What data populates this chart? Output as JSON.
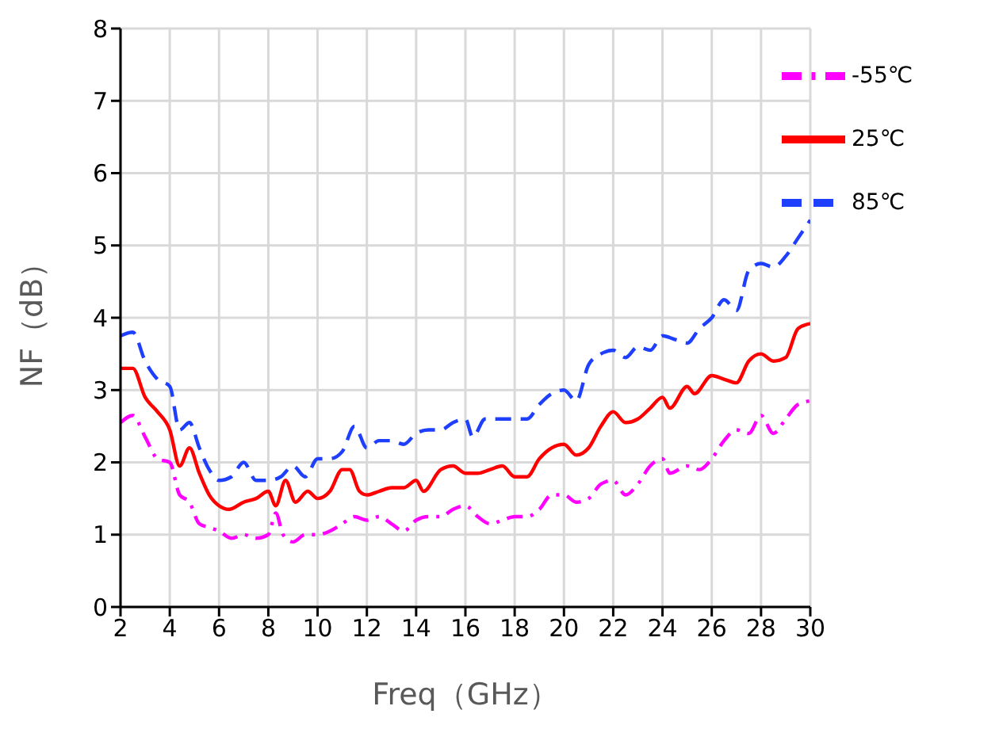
{
  "chart_data": {
    "type": "line",
    "xlabel": "Freq（GHz）",
    "ylabel": "NF（dB）",
    "xlim": [
      2,
      30
    ],
    "xticks": [
      2,
      4,
      6,
      8,
      10,
      12,
      14,
      16,
      18,
      20,
      22,
      24,
      26,
      28,
      30
    ],
    "ylim": [
      0,
      8
    ],
    "yticks": [
      0,
      1,
      2,
      3,
      4,
      5,
      6,
      7,
      8
    ],
    "grid": true,
    "legend": "top right",
    "marker": "none",
    "series": [
      {
        "name": "25℃",
        "color": "#ff0000",
        "line_style": "solid",
        "x": [
          2,
          2.5,
          3,
          3.5,
          4,
          4.4,
          4.8,
          5.2,
          5.6,
          6,
          6.4,
          7,
          7.5,
          8,
          8.3,
          8.7,
          9.1,
          9.6,
          10,
          10.5,
          11,
          11.3,
          11.7,
          12,
          12.5,
          13,
          13.5,
          14,
          14.3,
          15,
          15.5,
          16,
          16.5,
          17,
          17.5,
          18,
          18.5,
          19,
          20,
          20.5,
          21,
          21.5,
          22,
          22.5,
          23,
          23.5,
          24,
          24.3,
          25,
          25.3,
          26,
          26.5,
          27,
          27.5,
          28,
          28.5,
          29,
          29.5,
          30
        ],
        "values": [
          3.3,
          3.3,
          2.9,
          2.7,
          2.45,
          1.95,
          2.2,
          1.85,
          1.55,
          1.4,
          1.35,
          1.45,
          1.5,
          1.6,
          1.4,
          1.75,
          1.45,
          1.6,
          1.5,
          1.6,
          1.9,
          1.9,
          1.6,
          1.55,
          1.6,
          1.65,
          1.65,
          1.75,
          1.6,
          1.9,
          1.95,
          1.85,
          1.85,
          1.9,
          1.95,
          1.8,
          1.8,
          2.05,
          2.25,
          2.1,
          2.2,
          2.5,
          2.7,
          2.55,
          2.6,
          2.75,
          2.9,
          2.75,
          3.05,
          2.95,
          3.2,
          3.15,
          3.1,
          3.4,
          3.5,
          3.4,
          3.45,
          3.85,
          3.92
        ]
      },
      {
        "name": "85℃",
        "color": "#1f3fff",
        "line_style": "dashed",
        "x": [
          2,
          2.5,
          3,
          3.5,
          4,
          4.4,
          4.8,
          5.2,
          5.6,
          6,
          6.5,
          7,
          7.5,
          8,
          8.5,
          9,
          9.5,
          10,
          10.5,
          11,
          11.5,
          12,
          12.5,
          13,
          13.5,
          14,
          14.5,
          15,
          15.5,
          16,
          16.3,
          16.8,
          17.5,
          18,
          18.5,
          19,
          19.5,
          20,
          20.5,
          21,
          21.5,
          22,
          22.5,
          23,
          23.5,
          24,
          24.5,
          25,
          25.5,
          26,
          26.5,
          27,
          27.5,
          28,
          28.5,
          29,
          29.5,
          30
        ],
        "values": [
          3.75,
          3.8,
          3.4,
          3.15,
          3.05,
          2.45,
          2.55,
          2.2,
          1.9,
          1.75,
          1.8,
          2.0,
          1.75,
          1.75,
          1.8,
          1.95,
          1.8,
          2.05,
          2.05,
          2.15,
          2.5,
          2.2,
          2.3,
          2.3,
          2.25,
          2.4,
          2.45,
          2.45,
          2.55,
          2.6,
          2.35,
          2.6,
          2.6,
          2.6,
          2.6,
          2.8,
          2.95,
          3.0,
          2.85,
          3.35,
          3.5,
          3.55,
          3.45,
          3.6,
          3.55,
          3.75,
          3.7,
          3.65,
          3.85,
          4.0,
          4.25,
          4.1,
          4.65,
          4.75,
          4.7,
          4.85,
          5.1,
          5.35
        ]
      },
      {
        "name": "-55℃",
        "color": "#ff00ff",
        "line_style": "dashdot",
        "x": [
          2,
          2.5,
          3,
          3.5,
          4,
          4.4,
          4.8,
          5.2,
          5.6,
          6,
          6.5,
          7,
          7.5,
          8,
          8.3,
          8.6,
          9,
          9.5,
          10,
          10.5,
          11,
          11.5,
          12,
          12.5,
          13,
          13.5,
          14,
          14.5,
          15,
          15.5,
          16,
          16.5,
          17,
          17.5,
          18,
          18.5,
          19,
          19.5,
          20,
          20.5,
          21,
          21.5,
          22,
          22.5,
          23,
          23.5,
          24,
          24.3,
          25,
          25.5,
          26,
          26.5,
          27,
          27.5,
          28,
          28.5,
          29,
          29.5,
          30
        ],
        "values": [
          2.55,
          2.65,
          2.35,
          2.05,
          2.0,
          1.55,
          1.45,
          1.15,
          1.1,
          1.05,
          0.95,
          1.0,
          0.95,
          1.0,
          1.3,
          1.0,
          0.9,
          1.0,
          1.0,
          1.05,
          1.15,
          1.25,
          1.2,
          1.25,
          1.15,
          1.05,
          1.2,
          1.25,
          1.25,
          1.35,
          1.4,
          1.25,
          1.15,
          1.2,
          1.25,
          1.25,
          1.35,
          1.55,
          1.55,
          1.45,
          1.5,
          1.7,
          1.75,
          1.55,
          1.7,
          1.95,
          2.05,
          1.85,
          1.95,
          1.9,
          2.05,
          2.3,
          2.45,
          2.4,
          2.65,
          2.4,
          2.6,
          2.8,
          2.85
        ]
      }
    ]
  }
}
